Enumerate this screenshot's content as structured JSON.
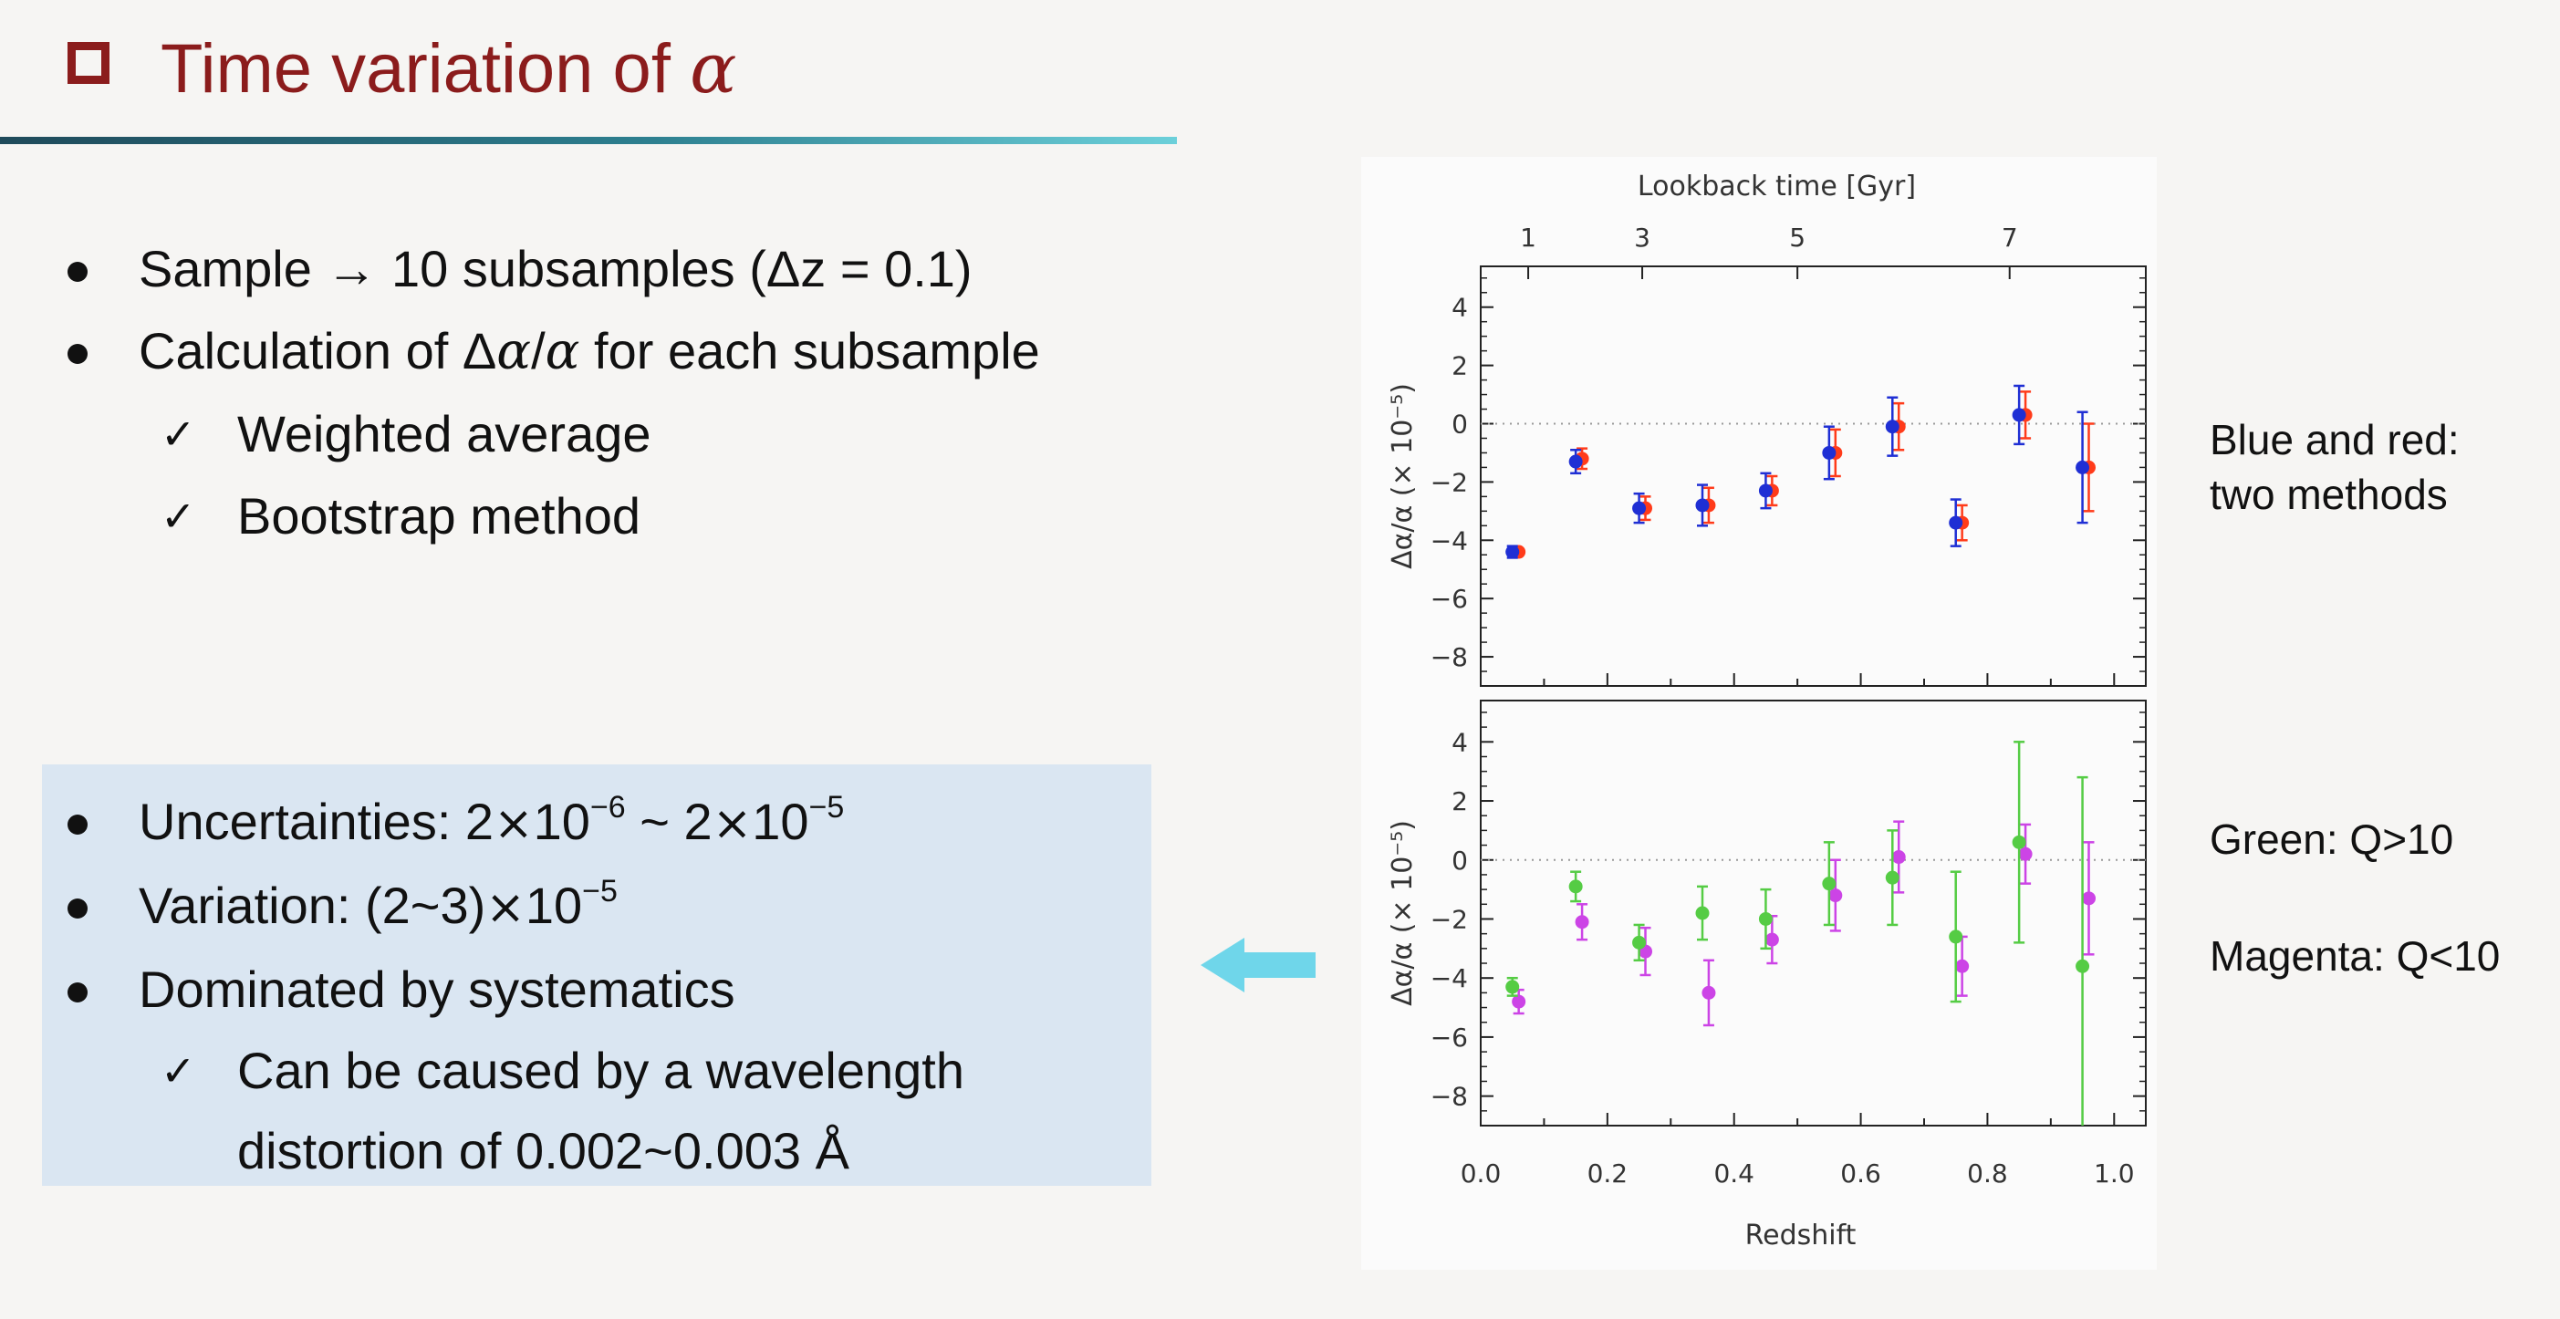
{
  "slide": {
    "title_prefix": "Time variation of ",
    "title_symbol": "α",
    "bullets_top": [
      {
        "text": "Sample → 10 subsamples (Δz = 0.1)"
      },
      {
        "pre": "Calculation of Δ",
        "mid": "α",
        "slash": "/",
        "mid2": "α",
        "post": " for each subsample"
      }
    ],
    "subbullets_top": [
      "Weighted average",
      "Bootstrap method"
    ],
    "box": {
      "uncert_label": "Uncertainties: 2",
      "uncert_mid": "10",
      "uncert_exp1": "−6",
      "uncert_tilde": " ~ 2",
      "uncert_exp2": "−5",
      "variation_label": "Variation: (2~3)",
      "variation_mid": "10",
      "variation_exp": "−5",
      "times_sign": "×",
      "dominated": "Dominated by systematics",
      "sub": "Can be caused by a wavelength distortion of 0.002~0.003 Å"
    },
    "notes": {
      "blue_red_1": "Blue and red:",
      "blue_red_2": "two methods",
      "green": "Green: Q>10",
      "magenta": "Magenta: Q<10"
    },
    "check_glyph": "✓"
  },
  "chart_data": [
    {
      "type": "scatter",
      "title": "",
      "xlabel": "Redshift",
      "ylabel": "Δα/α (× 10⁻⁵)",
      "top_axis_label": "Lookback time [Gyr]",
      "top_ticks": [
        {
          "label": "1",
          "z": 0.075
        },
        {
          "label": "3",
          "z": 0.255
        },
        {
          "label": "5",
          "z": 0.5
        },
        {
          "label": "7",
          "z": 0.835
        }
      ],
      "xlim": [
        0.0,
        1.05
      ],
      "ylim": [
        -9,
        5.4
      ],
      "yticks": [
        4,
        2,
        0,
        -2,
        -4,
        -6,
        -8
      ],
      "zero_line": true,
      "colors": {
        "blue": "#1f2fd4",
        "red": "#ff3b1a"
      },
      "series": [
        {
          "color": "blue",
          "x": [
            0.05,
            0.15,
            0.25,
            0.35,
            0.45,
            0.55,
            0.65,
            0.75,
            0.85,
            0.95
          ],
          "y": [
            -4.4,
            -1.3,
            -2.9,
            -2.8,
            -2.3,
            -1.0,
            -0.1,
            -3.4,
            0.3,
            -1.5
          ],
          "err": [
            0.2,
            0.4,
            0.5,
            0.7,
            0.6,
            0.9,
            1.0,
            0.8,
            1.0,
            1.9
          ]
        },
        {
          "color": "red",
          "x": [
            0.06,
            0.16,
            0.26,
            0.36,
            0.46,
            0.56,
            0.66,
            0.76,
            0.86,
            0.96
          ],
          "y": [
            -4.4,
            -1.2,
            -2.9,
            -2.8,
            -2.3,
            -1.0,
            -0.1,
            -3.4,
            0.3,
            -1.5
          ],
          "err": [
            0.1,
            0.35,
            0.4,
            0.6,
            0.5,
            0.8,
            0.8,
            0.6,
            0.8,
            1.5
          ]
        }
      ]
    },
    {
      "type": "scatter",
      "title": "",
      "xlabel": "Redshift",
      "ylabel": "Δα/α (× 10⁻⁵)",
      "xlim": [
        0.0,
        1.05
      ],
      "xticks": [
        "0.0",
        "0.2",
        "0.4",
        "0.6",
        "0.8",
        "1.0"
      ],
      "ylim": [
        -9,
        5.4
      ],
      "yticks": [
        4,
        2,
        0,
        -2,
        -4,
        -6,
        -8
      ],
      "zero_line": true,
      "colors": {
        "green": "#55cc44",
        "magenta": "#cc44e6"
      },
      "series": [
        {
          "color": "green",
          "x": [
            0.05,
            0.15,
            0.25,
            0.35,
            0.45,
            0.55,
            0.65,
            0.75,
            0.85,
            0.95
          ],
          "y": [
            -4.3,
            -0.9,
            -2.8,
            -1.8,
            -2.0,
            -0.8,
            -0.6,
            -2.6,
            0.6,
            -3.6
          ],
          "err": [
            0.3,
            0.5,
            0.6,
            0.9,
            1.0,
            1.4,
            1.6,
            2.2,
            3.4,
            6.4
          ]
        },
        {
          "color": "magenta",
          "x": [
            0.06,
            0.16,
            0.26,
            0.36,
            0.46,
            0.56,
            0.66,
            0.76,
            0.86,
            0.96
          ],
          "y": [
            -4.8,
            -2.1,
            -3.1,
            -4.5,
            -2.7,
            -1.2,
            0.1,
            -3.6,
            0.2,
            -1.3
          ],
          "err": [
            0.4,
            0.6,
            0.8,
            1.1,
            0.8,
            1.2,
            1.2,
            1.0,
            1.0,
            1.9
          ]
        }
      ]
    }
  ]
}
